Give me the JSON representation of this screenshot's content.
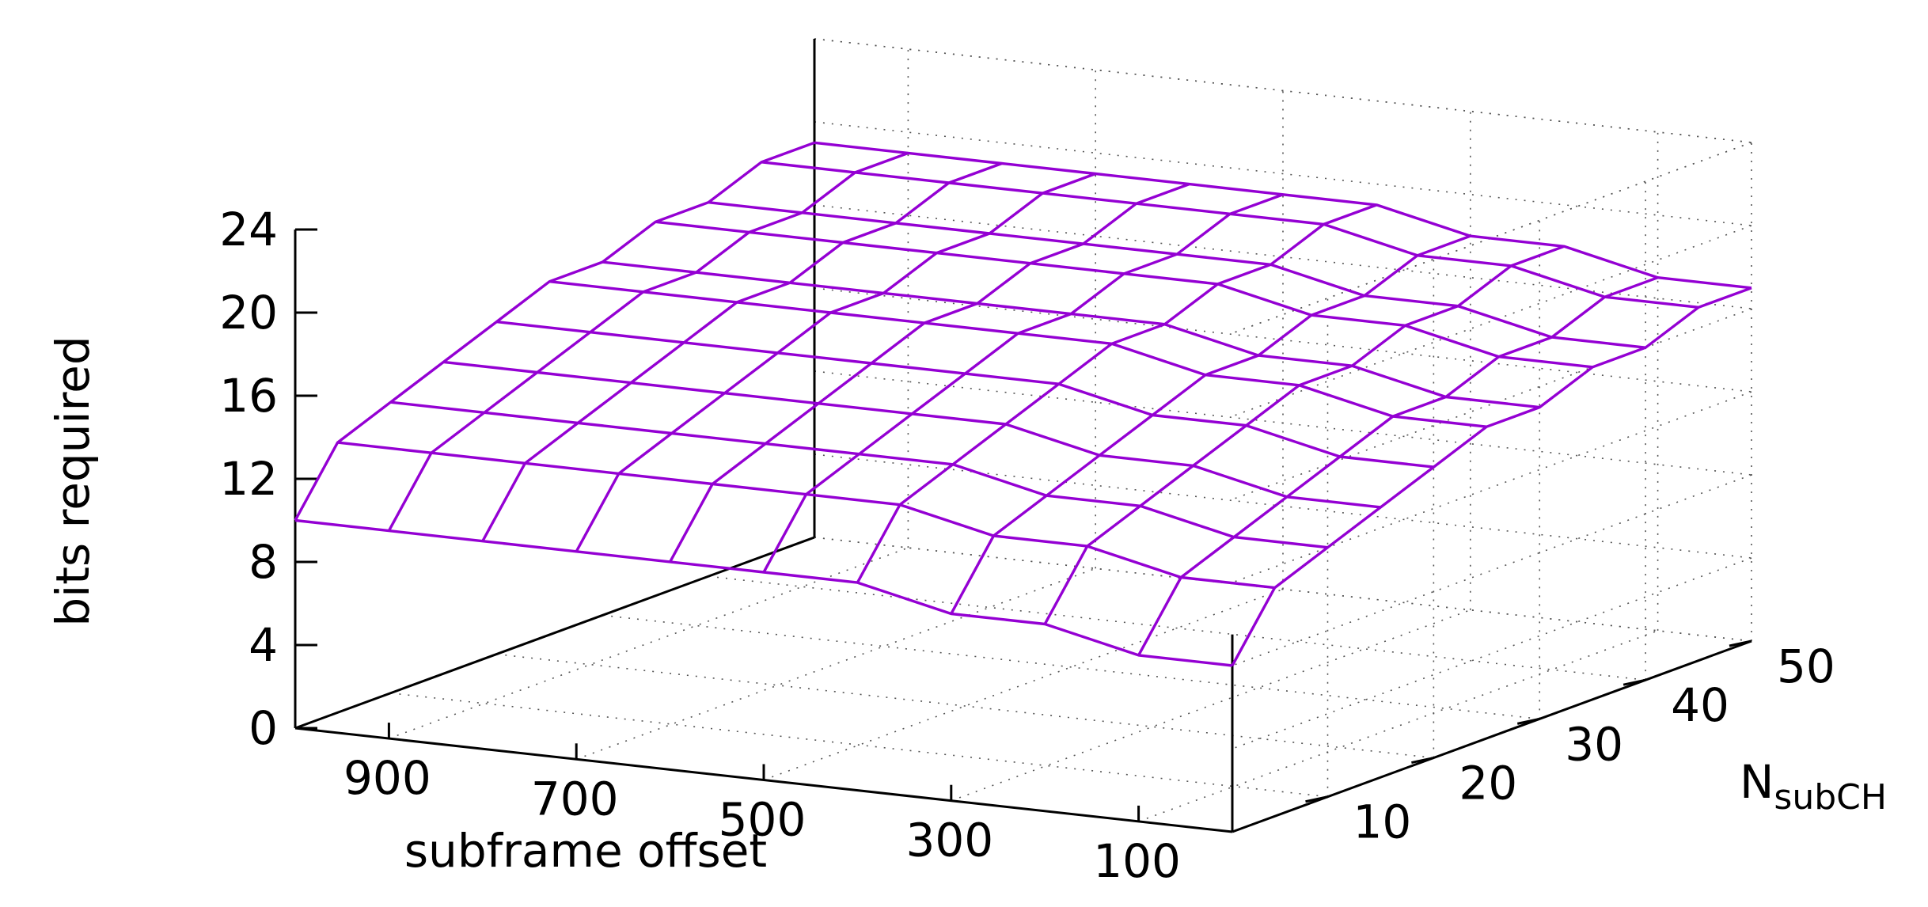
{
  "chart_data": {
    "type": "surface",
    "title": "",
    "xlabel": "subframe offset",
    "ylabel_main": "N",
    "ylabel_sub": "subCH",
    "zlabel": "bits required",
    "x_ticks": [
      "900",
      "700",
      "500",
      "300",
      "100"
    ],
    "y_ticks": [
      "10",
      "20",
      "30",
      "40",
      "50"
    ],
    "z_ticks": [
      "0",
      "4",
      "8",
      "12",
      "16",
      "20",
      "24"
    ],
    "xlim": [
      0,
      1000
    ],
    "ylim": [
      1,
      50
    ],
    "zlim": [
      0,
      24
    ],
    "grid": true,
    "colors": {
      "surface": "#9400d3",
      "axis": "#000000",
      "grid": "#555555"
    },
    "x": [
      0,
      100,
      200,
      300,
      400,
      500,
      600,
      700,
      800,
      900,
      1000
    ],
    "y": [
      1,
      5,
      10,
      15,
      20,
      25,
      30,
      35,
      40,
      45,
      50
    ],
    "z_rows": [
      [
        8,
        8,
        9,
        9,
        10,
        10,
        10,
        10,
        10,
        10,
        10
      ],
      [
        11,
        11,
        12,
        12,
        13,
        13,
        13,
        13,
        13,
        13,
        13
      ],
      [
        12,
        12,
        13,
        13,
        14,
        14,
        14,
        14,
        14,
        14,
        14
      ],
      [
        13,
        13,
        14,
        14,
        15,
        15,
        15,
        15,
        15,
        15,
        15
      ],
      [
        14,
        14,
        15,
        15,
        16,
        16,
        16,
        16,
        16,
        16,
        16
      ],
      [
        15,
        15,
        16,
        16,
        17,
        17,
        17,
        17,
        17,
        17,
        17
      ],
      [
        15,
        15,
        16,
        16,
        17,
        17,
        17,
        17,
        17,
        17,
        17
      ],
      [
        16,
        16,
        17,
        17,
        18,
        18,
        18,
        18,
        18,
        18,
        18
      ],
      [
        16,
        16,
        17,
        17,
        18,
        18,
        18,
        18,
        18,
        18,
        18
      ],
      [
        17,
        17,
        18,
        18,
        19,
        19,
        19,
        19,
        19,
        19,
        19
      ],
      [
        17,
        17,
        18,
        18,
        19,
        19,
        19,
        19,
        19,
        19,
        19
      ]
    ]
  }
}
